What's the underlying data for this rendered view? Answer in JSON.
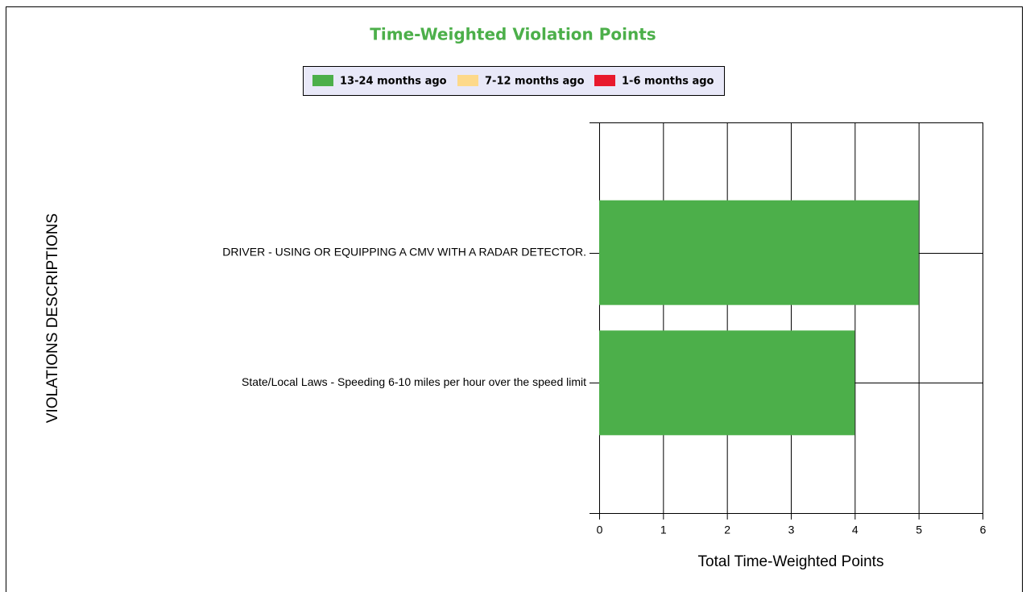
{
  "chart_data": {
    "type": "stacked_barh",
    "title": "Time-Weighted Violation Points",
    "xlabel": "Total Time-Weighted Points",
    "ylabel": "VIOLATIONS DESCRIPTIONS",
    "categories": [
      "DRIVER - USING OR EQUIPPING A CMV WITH A RADAR DETECTOR.",
      "State/Local Laws - Speeding 6-10 miles per hour over the speed limit"
    ],
    "series": [
      {
        "name": "13-24 months ago",
        "color": "#4caf4a",
        "values": [
          5,
          4
        ]
      },
      {
        "name": "7-12 months ago",
        "color": "#fdd98a",
        "values": [
          0,
          0
        ]
      },
      {
        "name": "1-6 months ago",
        "color": "#e8192c",
        "values": [
          0,
          0
        ]
      }
    ],
    "xlim": [
      0,
      6
    ],
    "xticks": [
      0,
      1,
      2,
      3,
      4,
      5,
      6
    ],
    "grid": true,
    "legend": "top"
  }
}
